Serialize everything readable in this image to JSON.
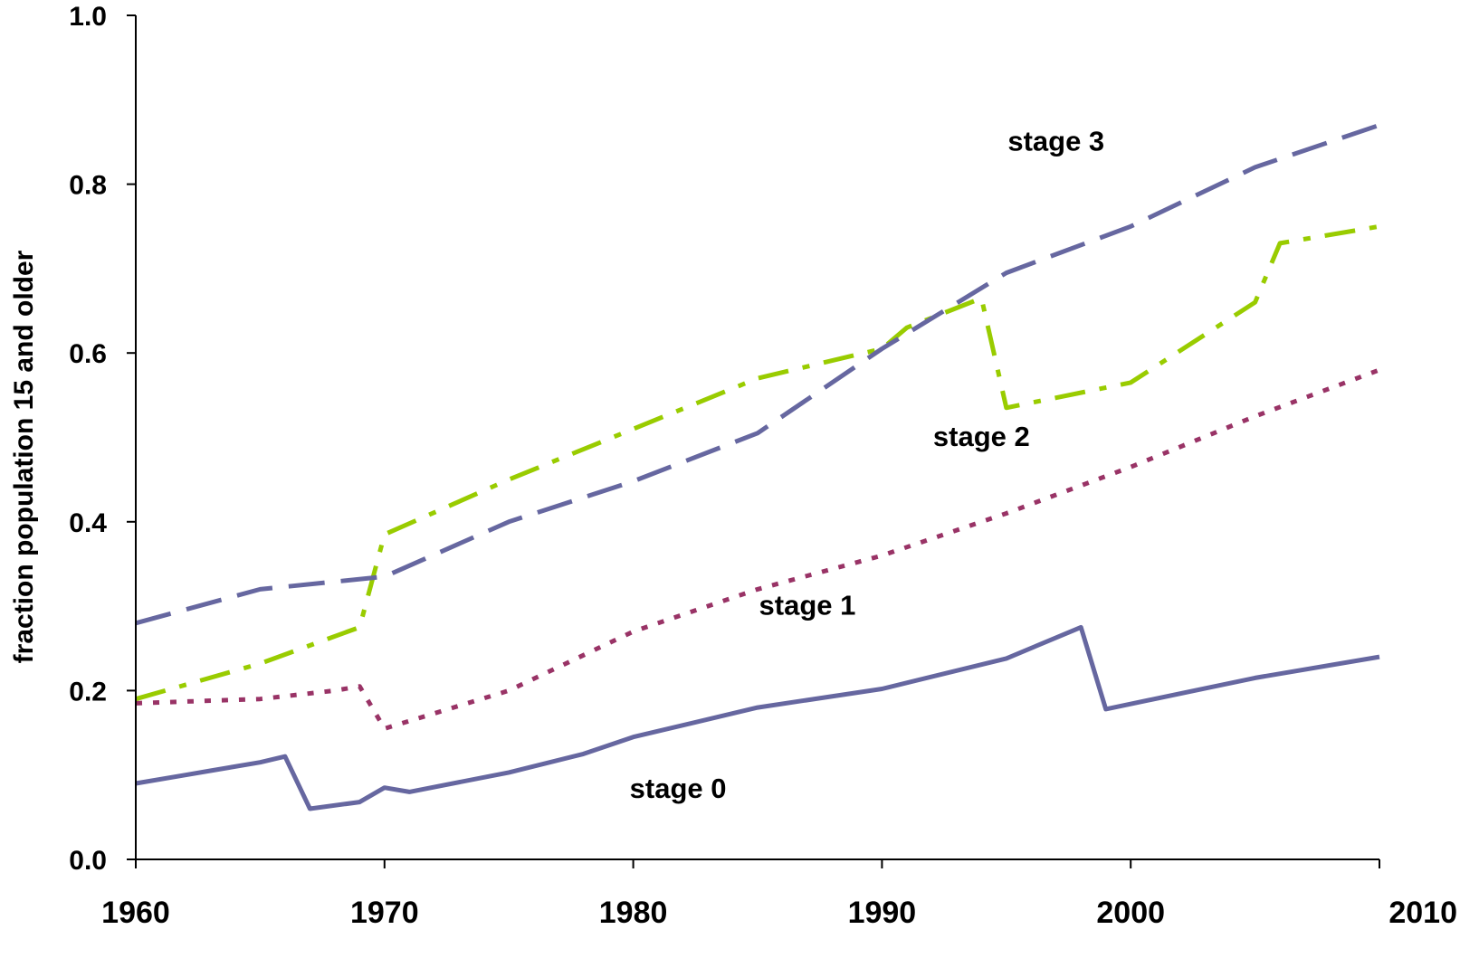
{
  "chart_data": {
    "type": "line",
    "title": "",
    "xlabel": "",
    "ylabel": "fraction population 15 and older",
    "xlim": [
      1960,
      2010
    ],
    "ylim": [
      0,
      1
    ],
    "x_ticks": [
      1960,
      1970,
      1980,
      1990,
      2000,
      2010
    ],
    "x_tick_labels": [
      "1960",
      "1970",
      "1980",
      "1990",
      "2000",
      "2010"
    ],
    "y_ticks": [
      0,
      0.2,
      0.4,
      0.6,
      0.8,
      1.0
    ],
    "y_tick_labels": [
      "0.0",
      "0.2",
      "0.4",
      "0.6",
      "0.8",
      "1.0"
    ],
    "grid": false,
    "legend": "none",
    "series": [
      {
        "name": "stage 0",
        "color": "#6667A0",
        "style": "solid",
        "x": [
          1960,
          1962,
          1963,
          1965,
          1966,
          1967,
          1969,
          1970,
          1971,
          1975,
          1978,
          1980,
          1985,
          1990,
          1995,
          1998,
          1999,
          2005,
          2010
        ],
        "y": [
          0.09,
          0.1,
          0.105,
          0.115,
          0.122,
          0.06,
          0.068,
          0.085,
          0.08,
          0.103,
          0.125,
          0.145,
          0.18,
          0.202,
          0.238,
          0.275,
          0.178,
          0.215,
          0.24
        ]
      },
      {
        "name": "stage 1",
        "color": "#993366",
        "style": "dotted",
        "x": [
          1960,
          1962,
          1965,
          1968,
          1969,
          1970,
          1975,
          1980,
          1985,
          1990,
          1995,
          2000,
          2005,
          2010
        ],
        "y": [
          0.185,
          0.187,
          0.19,
          0.2,
          0.205,
          0.155,
          0.2,
          0.27,
          0.32,
          0.36,
          0.41,
          0.465,
          0.525,
          0.58
        ]
      },
      {
        "name": "stage 2",
        "color": "#99CC00",
        "style": "dashdot",
        "x": [
          1960,
          1965,
          1969,
          1970,
          1975,
          1980,
          1985,
          1990,
          1991,
          1994,
          1995,
          2000,
          2005,
          2006,
          2010
        ],
        "y": [
          0.19,
          0.232,
          0.275,
          0.385,
          0.45,
          0.51,
          0.57,
          0.605,
          0.63,
          0.665,
          0.535,
          0.565,
          0.66,
          0.73,
          0.75
        ]
      },
      {
        "name": "stage 3",
        "color": "#6667A0",
        "style": "dashed",
        "x": [
          1960,
          1965,
          1970,
          1975,
          1980,
          1985,
          1990,
          1995,
          2000,
          2005,
          2010
        ],
        "y": [
          0.28,
          0.32,
          0.335,
          0.4,
          0.448,
          0.505,
          0.605,
          0.695,
          0.75,
          0.82,
          0.87
        ]
      }
    ],
    "annotations": [
      {
        "text": "stage 3",
        "x": 1997,
        "y": 0.84
      },
      {
        "text": "stage 2",
        "x": 1994,
        "y": 0.49
      },
      {
        "text": "stage 1",
        "x": 1987,
        "y": 0.29
      },
      {
        "text": "stage 0",
        "x": 1981.8,
        "y": 0.073
      }
    ]
  }
}
